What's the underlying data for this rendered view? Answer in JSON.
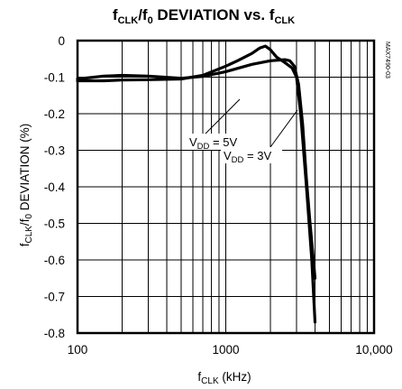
{
  "chart_data": {
    "type": "line",
    "title": {
      "base": "f",
      "sub": "CLK",
      "mid": "/f",
      "sub2": "0",
      "rest": " DEVIATION vs. f",
      "sub3": "CLK"
    },
    "xlabel": {
      "base": "f",
      "sub": "CLK",
      "rest": " (kHz)"
    },
    "ylabel": {
      "base": "f",
      "sub": "CLK",
      "mid": "/f",
      "sub2": "0",
      "rest": " DEVIATION (%)"
    },
    "x_scale": "log",
    "xlim": [
      100,
      10000
    ],
    "ylim": [
      -0.8,
      0
    ],
    "x_ticks": [
      {
        "value": 100,
        "label": "100"
      },
      {
        "value": 1000,
        "label": "1000"
      },
      {
        "value": 10000,
        "label": "10,000"
      }
    ],
    "y_ticks": [
      {
        "value": 0,
        "label": "0"
      },
      {
        "value": -0.1,
        "label": "-0.1"
      },
      {
        "value": -0.2,
        "label": "-0.2"
      },
      {
        "value": -0.3,
        "label": "-0.3"
      },
      {
        "value": -0.4,
        "label": "-0.4"
      },
      {
        "value": -0.5,
        "label": "-0.5"
      },
      {
        "value": -0.6,
        "label": "-0.6"
      },
      {
        "value": -0.7,
        "label": "-0.7"
      },
      {
        "value": -0.8,
        "label": "-0.8"
      }
    ],
    "grid": true,
    "series": [
      {
        "name": "VDD = 5V",
        "x": [
          100,
          150,
          200,
          300,
          500,
          700,
          1000,
          1200,
          1500,
          1700,
          1850,
          2000,
          2200,
          2500,
          2800,
          3000,
          3200,
          3500,
          3800,
          4000
        ],
        "y": [
          -0.11,
          -0.11,
          -0.108,
          -0.107,
          -0.105,
          -0.095,
          -0.07,
          -0.055,
          -0.035,
          -0.02,
          -0.015,
          -0.025,
          -0.045,
          -0.06,
          -0.075,
          -0.1,
          -0.2,
          -0.4,
          -0.6,
          -0.77
        ]
      },
      {
        "name": "VDD = 3V",
        "x": [
          100,
          150,
          200,
          300,
          500,
          700,
          1000,
          1500,
          2000,
          2500,
          2700,
          2900,
          3100,
          3300,
          3500,
          3700,
          3900,
          4000
        ],
        "y": [
          -0.105,
          -0.097,
          -0.095,
          -0.097,
          -0.103,
          -0.098,
          -0.085,
          -0.065,
          -0.055,
          -0.052,
          -0.055,
          -0.07,
          -0.12,
          -0.23,
          -0.38,
          -0.5,
          -0.6,
          -0.65
        ]
      }
    ],
    "annotations": [
      {
        "base": "V",
        "sub": "DD",
        "rest": " = 5V"
      },
      {
        "base": "V",
        "sub": "DD",
        "rest": " = 3V"
      }
    ],
    "watermark": "MAX7490-03"
  }
}
